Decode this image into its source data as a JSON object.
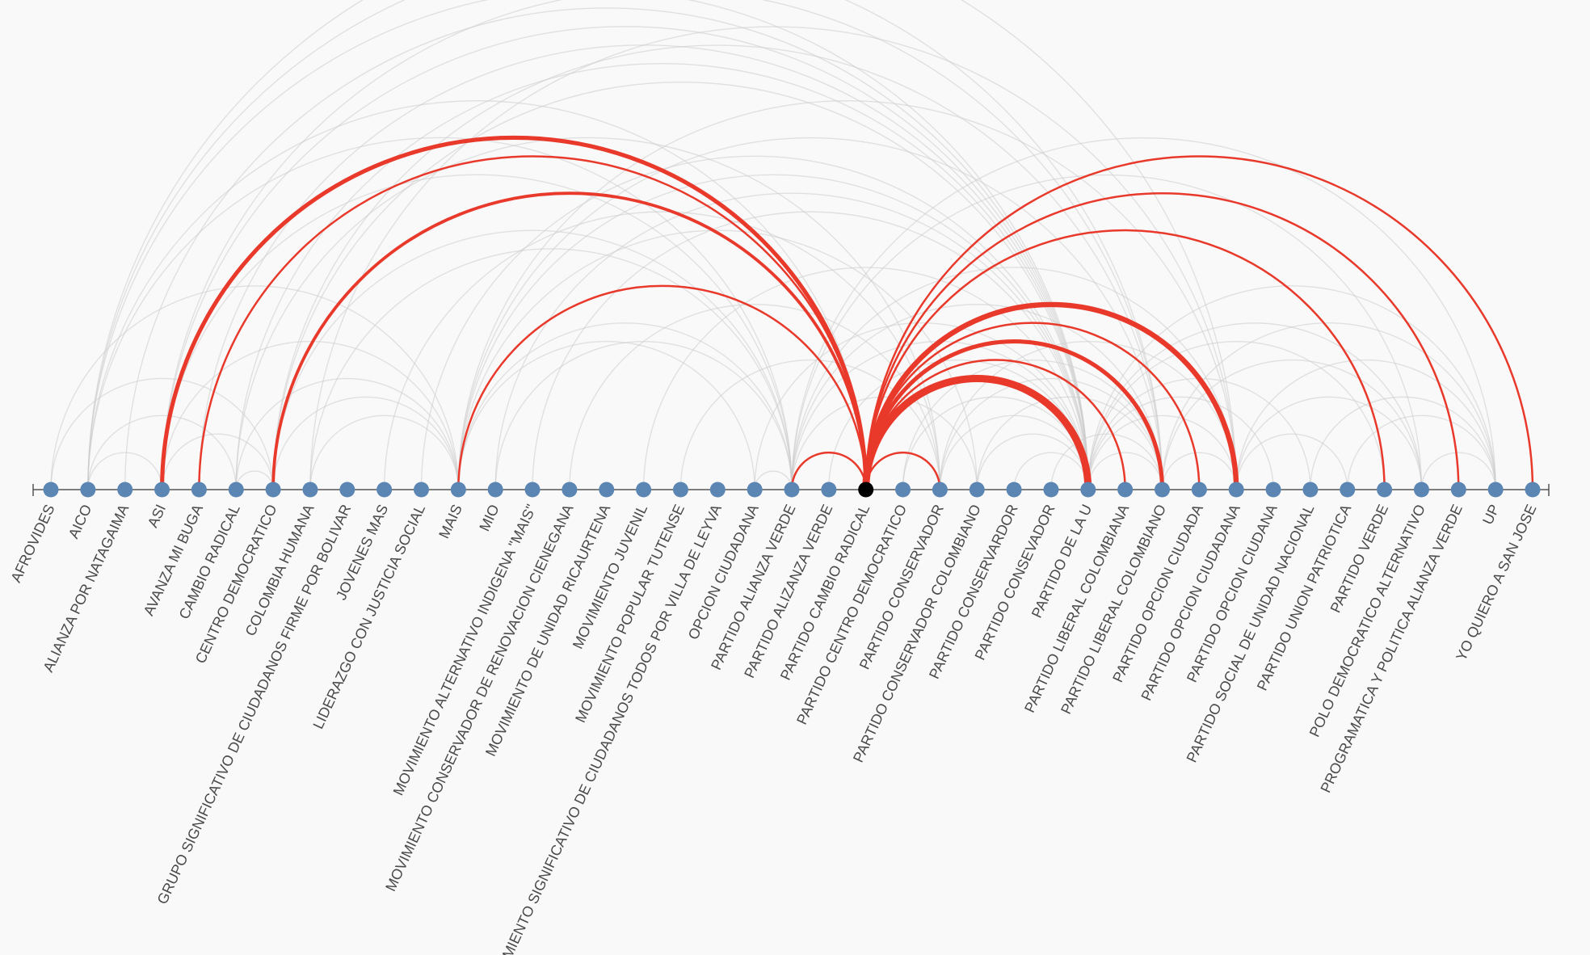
{
  "colors": {
    "background": "#f9f9f9",
    "node": "#5b86b3",
    "selected_node": "#000000",
    "highlight_arc": "#e8392b",
    "faded_arc": "#cccccc"
  },
  "selected_node": "PARTIDO CAMBIO RADICAL",
  "nodes": [
    "AFROVIDES",
    "AICO",
    "ALIANZA POR NATAGAIMA",
    "ASI",
    "AVANZA MI BUGA",
    "CAMBIO RADICAL",
    "CENTRO DEMOCRATICO",
    "COLOMBIA HUMANA",
    "GRUPO SIGNIFICATIVO DE CIUDADANOS FIRME POR BOLIVAR",
    "JOVENES MAS",
    "LIDERAZGO CON JUSTICIA SOCIAL",
    "MAIS",
    "MIO",
    "MOVIMIENTO ALTERNATIVO INDIGENA \"MAIS\"",
    "MOVIMIENTO CONSERVADOR DE RENOVACION CIENEGANA",
    "MOVIMIENTO DE UNIDAD RICAURTENA",
    "MOVIMIENTO JUVENIL",
    "MOVIMIENTO POPULAR TUTENSE",
    "MOVIMIENTO SIGNIFICATIVO DE CIUDADANOS TODOS POR VILLA DE LEYVA",
    "OPCION CIUDADANA",
    "PARTIDO ALIANZA VERDE",
    "PARTIDO ALIZANZA VERDE",
    "PARTIDO CAMBIO RADICAL",
    "PARTIDO CENTRO DEMOCRATICO",
    "PARTIDO CONSERVADOR",
    "PARTIDO CONSERVADOR COLOMBIANO",
    "PARTIDO CONSERVARDOR",
    "PARTIDO CONSEVADOR",
    "PARTIDO DE LA U",
    "PARTIDO LIBERAL COLOMBIANA",
    "PARTIDO LIBERAL COLOMBIANO",
    "PARTIDO OPCION CIUDADA",
    "PARTIDO OPCION CIUDADANA",
    "PARTIDO OPCION CIUDANA",
    "PARTIDO SOCIAL DE UNIDAD NACIONAL",
    "PARTIDO UNION PATRIOTICA",
    "PARTIDO VERDE",
    "POLO DEMOCRATICO ALTERNATIVO",
    "PROGRAMATICA Y POLITICA ALIANZA VERDE",
    "UP",
    "YO QUIERO A SAN JOSE"
  ],
  "highlighted_links": [
    {
      "source": "ASI",
      "target": "PARTIDO CAMBIO RADICAL",
      "weight": 3
    },
    {
      "source": "AVANZA MI BUGA",
      "target": "PARTIDO CAMBIO RADICAL",
      "weight": 1
    },
    {
      "source": "CENTRO DEMOCRATICO",
      "target": "PARTIDO CAMBIO RADICAL",
      "weight": 2
    },
    {
      "source": "MAIS",
      "target": "PARTIDO CAMBIO RADICAL",
      "weight": 1
    },
    {
      "source": "PARTIDO ALIANZA VERDE",
      "target": "PARTIDO CAMBIO RADICAL",
      "weight": 1
    },
    {
      "source": "PARTIDO CAMBIO RADICAL",
      "target": "PARTIDO CONSERVADOR",
      "weight": 1
    },
    {
      "source": "PARTIDO CAMBIO RADICAL",
      "target": "PARTIDO DE LA U",
      "weight": 6
    },
    {
      "source": "PARTIDO CAMBIO RADICAL",
      "target": "PARTIDO LIBERAL COLOMBIANA",
      "weight": 1
    },
    {
      "source": "PARTIDO CAMBIO RADICAL",
      "target": "PARTIDO LIBERAL COLOMBIANO",
      "weight": 3
    },
    {
      "source": "PARTIDO CAMBIO RADICAL",
      "target": "PARTIDO OPCION CIUDADA",
      "weight": 1
    },
    {
      "source": "PARTIDO CAMBIO RADICAL",
      "target": "PARTIDO OPCION CIUDADANA",
      "weight": 4
    },
    {
      "source": "PARTIDO CAMBIO RADICAL",
      "target": "PARTIDO VERDE",
      "weight": 1
    },
    {
      "source": "PARTIDO CAMBIO RADICAL",
      "target": "PROGRAMATICA Y POLITICA ALIANZA VERDE",
      "weight": 1
    },
    {
      "source": "PARTIDO CAMBIO RADICAL",
      "target": "YO QUIERO A SAN JOSE",
      "weight": 1
    }
  ],
  "background_links": [
    [
      "AFROVIDES",
      "CENTRO DEMOCRATICO"
    ],
    [
      "AFROVIDES",
      "MAIS"
    ],
    [
      "AICO",
      "PARTIDO CAMBIO RADICAL"
    ],
    [
      "AICO",
      "PARTIDO DE LA U"
    ],
    [
      "AICO",
      "PARTIDO OPCION CIUDADANA"
    ],
    [
      "AICO",
      "PARTIDO LIBERAL COLOMBIANO"
    ],
    [
      "AICO",
      "CAMBIO RADICAL"
    ],
    [
      "AICO",
      "ASI"
    ],
    [
      "ALIANZA POR NATAGAIMA",
      "PARTIDO DE LA U"
    ],
    [
      "ASI",
      "PARTIDO DE LA U"
    ],
    [
      "ASI",
      "PARTIDO LIBERAL COLOMBIANO"
    ],
    [
      "ASI",
      "CENTRO DEMOCRATICO"
    ],
    [
      "ASI",
      "MAIS"
    ],
    [
      "AVANZA MI BUGA",
      "PARTIDO DE LA U"
    ],
    [
      "CAMBIO RADICAL",
      "CENTRO DEMOCRATICO"
    ],
    [
      "CAMBIO RADICAL",
      "PARTIDO CONSERVADOR"
    ],
    [
      "CAMBIO RADICAL",
      "PARTIDO DE LA U"
    ],
    [
      "CENTRO DEMOCRATICO",
      "MAIS"
    ],
    [
      "CENTRO DEMOCRATICO",
      "PARTIDO ALIANZA VERDE"
    ],
    [
      "CENTRO DEMOCRATICO",
      "PARTIDO DE LA U"
    ],
    [
      "CENTRO DEMOCRATICO",
      "PARTIDO LIBERAL COLOMBIANO"
    ],
    [
      "COLOMBIA HUMANA",
      "PARTIDO ALIANZA VERDE"
    ],
    [
      "COLOMBIA HUMANA",
      "PARTIDO OPCION CIUDADANA"
    ],
    [
      "JOVENES MAS",
      "PARTIDO CONSERVADOR"
    ],
    [
      "LIDERAZGO CON JUSTICIA SOCIAL",
      "PARTIDO DE LA U"
    ],
    [
      "MAIS",
      "PARTIDO ALIANZA VERDE"
    ],
    [
      "MAIS",
      "PARTIDO DE LA U"
    ],
    [
      "MAIS",
      "PARTIDO LIBERAL COLOMBIANO"
    ],
    [
      "MAIS",
      "PARTIDO OPCION CIUDADANA"
    ],
    [
      "MAIS",
      "OPCION CIUDADANA"
    ],
    [
      "MAIS",
      "PARTIDO CONSERVADOR COLOMBIANO"
    ],
    [
      "MIO",
      "PARTIDO ALIANZA VERDE"
    ],
    [
      "MIO",
      "PARTIDO DE LA U"
    ],
    [
      "MOVIMIENTO CONSERVADOR DE RENOVACION CIENEGANA",
      "PARTIDO CONSERVADOR"
    ],
    [
      "MOVIMIENTO JUVENIL",
      "PARTIDO DE LA U"
    ],
    [
      "OPCION CIUDADANA",
      "PARTIDO DE LA U"
    ],
    [
      "OPCION CIUDADANA",
      "PARTIDO ALIANZA VERDE"
    ],
    [
      "PARTIDO ALIANZA VERDE",
      "PARTIDO CONSERVADOR COLOMBIANO"
    ],
    [
      "PARTIDO ALIANZA VERDE",
      "PARTIDO DE LA U"
    ],
    [
      "PARTIDO ALIANZA VERDE",
      "PARTIDO LIBERAL COLOMBIANO"
    ],
    [
      "PARTIDO ALIANZA VERDE",
      "PARTIDO OPCION CIUDADANA"
    ],
    [
      "PARTIDO ALIANZA VERDE",
      "POLO DEMOCRATICO ALTERNATIVO"
    ],
    [
      "PARTIDO ALIANZA VERDE",
      "UP"
    ],
    [
      "PARTIDO ALIZANZA VERDE",
      "PARTIDO DE LA U"
    ],
    [
      "PARTIDO CENTRO DEMOCRATICO",
      "PARTIDO DE LA U"
    ],
    [
      "PARTIDO CENTRO DEMOCRATICO",
      "PARTIDO LIBERAL COLOMBIANO"
    ],
    [
      "PARTIDO CONSERVADOR",
      "PARTIDO DE LA U"
    ],
    [
      "PARTIDO CONSERVADOR",
      "PARTIDO LIBERAL COLOMBIANO"
    ],
    [
      "PARTIDO CONSERVADOR",
      "PARTIDO OPCION CIUDADANA"
    ],
    [
      "PARTIDO CONSERVADOR COLOMBIANO",
      "PARTIDO DE LA U"
    ],
    [
      "PARTIDO CONSERVADOR COLOMBIANO",
      "PARTIDO LIBERAL COLOMBIANO"
    ],
    [
      "PARTIDO CONSERVARDOR",
      "PARTIDO DE LA U"
    ],
    [
      "PARTIDO DE LA U",
      "PARTIDO LIBERAL COLOMBIANO"
    ],
    [
      "PARTIDO DE LA U",
      "PARTIDO OPCION CIUDADANA"
    ],
    [
      "PARTIDO DE LA U",
      "PARTIDO SOCIAL DE UNIDAD NACIONAL"
    ],
    [
      "PARTIDO DE LA U",
      "POLO DEMOCRATICO ALTERNATIVO"
    ],
    [
      "PARTIDO DE LA U",
      "UP"
    ],
    [
      "PARTIDO LIBERAL COLOMBIANO",
      "PARTIDO OPCION CIUDADANA"
    ],
    [
      "PARTIDO LIBERAL COLOMBIANO",
      "POLO DEMOCRATICO ALTERNATIVO"
    ],
    [
      "PARTIDO LIBERAL COLOMBIANO",
      "UP"
    ],
    [
      "PARTIDO OPCION CIUDADANA",
      "PARTIDO UNION PATRIOTICA"
    ],
    [
      "PARTIDO OPCION CIUDADANA",
      "UP"
    ],
    [
      "PARTIDO OPCION CIUDADANA",
      "POLO DEMOCRATICO ALTERNATIVO"
    ],
    [
      "PARTIDO SOCIAL DE UNIDAD NACIONAL",
      "UP"
    ],
    [
      "PARTIDO UNION PATRIOTICA",
      "UP"
    ],
    [
      "POLO DEMOCRATICO ALTERNATIVO",
      "UP"
    ],
    [
      "AICO",
      "PARTIDO ALIANZA VERDE"
    ],
    [
      "ASI",
      "PARTIDO ALIANZA VERDE"
    ],
    [
      "CAMBIO RADICAL",
      "MAIS"
    ],
    [
      "COLOMBIA HUMANA",
      "MAIS"
    ],
    [
      "MOVIMIENTO ALTERNATIVO INDIGENA \"MAIS\"",
      "PARTIDO DE LA U"
    ],
    [
      "MOVIMIENTO POPULAR TUTENSE",
      "PARTIDO CONSERVADOR"
    ],
    [
      "PARTIDO CONSEVADOR",
      "PARTIDO LIBERAL COLOMBIANO"
    ],
    [
      "PARTIDO OPCION CIUDANA",
      "PARTIDO DE LA U"
    ],
    [
      "PARTIDO VERDE",
      "PARTIDO DE LA U"
    ]
  ]
}
